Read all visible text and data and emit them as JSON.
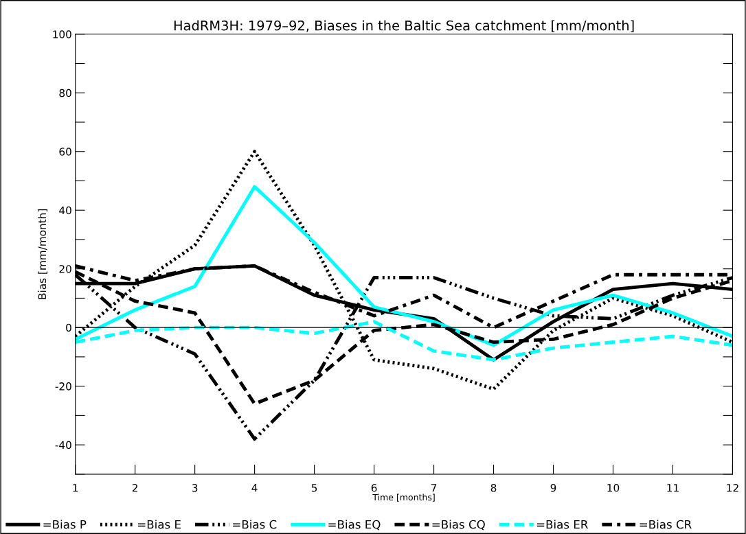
{
  "chart_data": {
    "type": "line",
    "title": "HadRM3H: 1979–92, Biases in the Baltic Sea catchment [mm/month]",
    "xlabel": "Time [months]",
    "ylabel": "Bias [mm/month]",
    "x": [
      1,
      2,
      3,
      4,
      5,
      6,
      7,
      8,
      9,
      10,
      11,
      12
    ],
    "series": [
      {
        "name": "=Bias P",
        "color": "#000000",
        "line_style": "solid",
        "values": [
          15,
          15,
          20,
          21,
          11,
          6,
          3,
          -11,
          2,
          13,
          15,
          13
        ]
      },
      {
        "name": "=Bias E",
        "color": "#000000",
        "line_style": "dotted",
        "values": [
          -3,
          14,
          28,
          60,
          28,
          -11,
          -14,
          -21,
          -1,
          10,
          4,
          -5
        ]
      },
      {
        "name": "=Bias C",
        "color": "#000000",
        "line_style": "dashdotdot",
        "values": [
          18,
          0,
          -9,
          -38,
          -18,
          17,
          17,
          10,
          4,
          3,
          11,
          17
        ]
      },
      {
        "name": "=Bias EQ",
        "color": "#00ffff",
        "line_style": "solid",
        "values": [
          -4,
          6,
          14,
          48,
          29,
          7,
          2,
          -6,
          6,
          11,
          5,
          -3
        ]
      },
      {
        "name": "=Bias CQ",
        "color": "#000000",
        "line_style": "dashed",
        "values": [
          19,
          9,
          5,
          -26,
          -18,
          -1,
          1,
          -5,
          -4,
          1,
          10,
          16
        ]
      },
      {
        "name": "=Bias ER",
        "color": "#00ffff",
        "line_style": "dashed",
        "values": [
          -5,
          -1,
          0,
          0,
          -2,
          2,
          -8,
          -11,
          -7,
          -5,
          -3,
          -6
        ]
      },
      {
        "name": "=Bias CR",
        "color": "#000000",
        "line_style": "dashdot",
        "values": [
          21,
          16,
          20,
          21,
          12,
          4,
          11,
          0,
          9,
          18,
          18,
          18
        ]
      }
    ],
    "xlim": [
      1,
      12
    ],
    "xticks": [
      1,
      2,
      3,
      4,
      5,
      6,
      7,
      8,
      9,
      10,
      11,
      12
    ],
    "ylim": [
      -50,
      100
    ],
    "yticks": [
      {
        "value": -50,
        "label": null
      },
      -40,
      {
        "value": -30,
        "label": null
      },
      -20,
      {
        "value": -10,
        "label": null
      },
      0,
      {
        "value": 10,
        "label": null
      },
      20,
      {
        "value": 30,
        "label": null
      },
      40,
      {
        "value": 50,
        "label": null
      },
      60,
      {
        "value": 70,
        "label": null
      },
      80,
      {
        "value": 90,
        "label": null
      },
      100
    ],
    "ref_lines": [
      {
        "axis": "y",
        "value": 0,
        "color": "#000000"
      }
    ],
    "grid": false,
    "legend": "bottom",
    "marker": "none"
  }
}
